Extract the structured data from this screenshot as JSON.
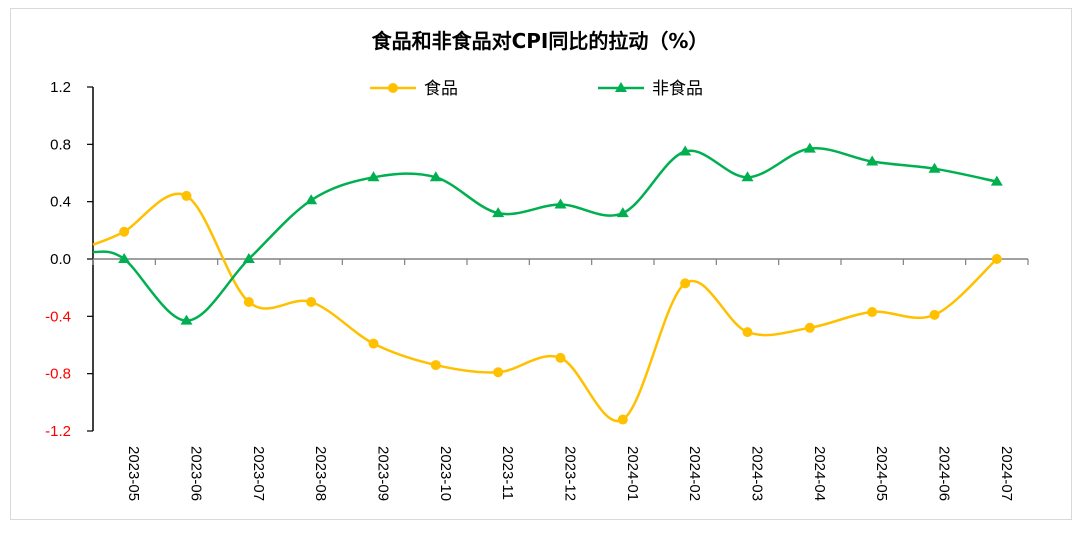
{
  "chart_data": {
    "type": "line",
    "title": "食品和非食品对CPI同比的拉动（%）",
    "xlabel": "",
    "ylabel": "",
    "categories": [
      "2023-05",
      "2023-06",
      "2023-07",
      "2023-08",
      "2023-09",
      "2023-10",
      "2023-11",
      "2023-12",
      "2024-01",
      "2024-02",
      "2024-03",
      "2024-04",
      "2024-05",
      "2024-06",
      "2024-07"
    ],
    "ylim": [
      -1.2,
      1.2
    ],
    "yticks": [
      "1.2",
      "0.8",
      "0.4",
      "0.0",
      "-0.4",
      "-0.8",
      "-1.2"
    ],
    "ytick_values": [
      1.2,
      0.8,
      0.4,
      0.0,
      -0.4,
      -0.8,
      -1.2
    ],
    "grid": false,
    "legend": "top-center",
    "smooth": true,
    "negative_tick_color": "#ff0000",
    "series": [
      {
        "name": "食品",
        "color": "#ffc000",
        "marker": "circle",
        "values": [
          0.19,
          0.44,
          -0.3,
          -0.3,
          -0.59,
          -0.74,
          -0.79,
          -0.69,
          -1.12,
          -0.17,
          -0.51,
          -0.48,
          -0.37,
          -0.39,
          0.0
        ]
      },
      {
        "name": "非食品",
        "color": "#00b050",
        "marker": "triangle",
        "values": [
          0.0,
          -0.43,
          0.0,
          0.41,
          0.57,
          0.57,
          0.32,
          0.38,
          0.32,
          0.75,
          0.57,
          0.77,
          0.68,
          0.63,
          0.54
        ]
      }
    ]
  }
}
